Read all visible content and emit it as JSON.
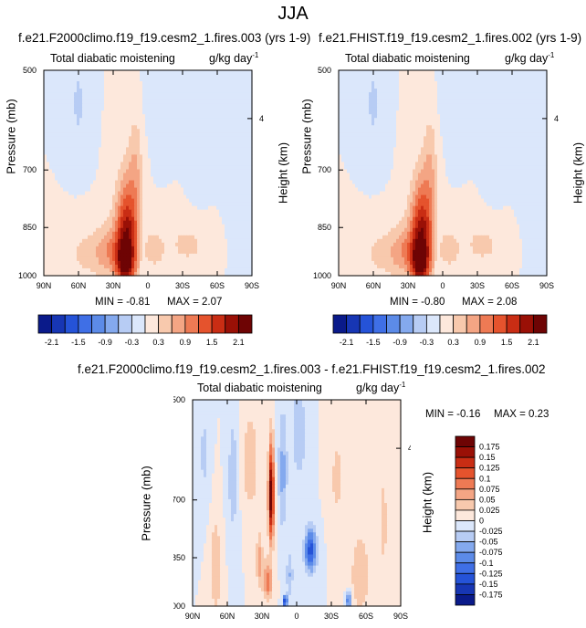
{
  "figure_title": "JJA",
  "panels": [
    {
      "title": "f.e21.F2000climo.f19_f19.cesm2_1.fires.003 (yrs 1-9)",
      "subtitle_left": "Total diabatic moistening",
      "units": "g/kg day",
      "units_exp": "-1",
      "ylabel": "Pressure (mb)",
      "ylabel_right": "Height (km)",
      "min_label": "MIN = -0.81",
      "max_label": "MAX =  2.07",
      "colorbar_labels": [
        "-2.1",
        "-1.5",
        "-0.9",
        "-0.3",
        "0.3",
        "0.9",
        "1.5",
        "2.1"
      ]
    },
    {
      "title": "f.e21.FHIST.f19_f19.cesm2_1.fires.002 (yrs 1-9)",
      "subtitle_left": "Total diabatic moistening",
      "units": "g/kg day",
      "units_exp": "-1",
      "ylabel": "Pressure (mb)",
      "ylabel_right": "Height (km)",
      "min_label": "MIN = -0.80",
      "max_label": "MAX =  2.08",
      "colorbar_labels": [
        "-2.1",
        "-1.5",
        "-0.9",
        "-0.3",
        "0.3",
        "0.9",
        "1.5",
        "2.1"
      ]
    },
    {
      "title": "f.e21.F2000climo.f19_f19.cesm2_1.fires.003 - f.e21.FHIST.f19_f19.cesm2_1.fires.002",
      "subtitle_left": "Total diabatic moistening",
      "units": "g/kg day",
      "units_exp": "-1",
      "ylabel": "Pressure (mb)",
      "ylabel_right": "Height (km)",
      "min_label": "MIN = -0.16",
      "max_label": "MAX =  0.23",
      "colorbar_labels": [
        "0.175",
        "0.15",
        "0.125",
        "0.1",
        "0.075",
        "0.05",
        "0.025",
        "0",
        "-0.025",
        "-0.05",
        "-0.075",
        "-0.1",
        "-0.125",
        "-0.15",
        "-0.175"
      ]
    }
  ],
  "chart_data": [
    {
      "type": "heatmap",
      "title": "f.e21.F2000climo.f19_f19.cesm2_1.fires.003 (yrs 1-9)",
      "xlabel": "",
      "ylabel": "Pressure (mb)",
      "x_ticks": [
        "90N",
        "60N",
        "30N",
        "0",
        "30S",
        "60S",
        "90S"
      ],
      "x_range": [
        90,
        -90
      ],
      "y_ticks": [
        500,
        700,
        850,
        1000
      ],
      "y_range": [
        1000,
        500
      ],
      "y_scale": "log",
      "right_axis_ticks": [
        "4"
      ],
      "min": -0.81,
      "max": 2.07,
      "levels": [
        -2.1,
        -1.8,
        -1.5,
        -1.2,
        -0.9,
        -0.6,
        -0.3,
        0,
        0.3,
        0.6,
        0.9,
        1.2,
        1.5,
        1.8,
        2.1
      ],
      "colors": [
        "#0a1a8a",
        "#1736b4",
        "#2553d8",
        "#3f6fe6",
        "#5c8be8",
        "#84a9ee",
        "#b7ccf4",
        "#dbe7fb",
        "#fde8dc",
        "#f8c9ad",
        "#f4a584",
        "#ee7a54",
        "#e5532d",
        "#c92d14",
        "#9a1006",
        "#6e0404"
      ],
      "features": [
        {
          "lat": 18,
          "p": 880,
          "amp": 2.0,
          "slat": 10,
          "sp": 150
        },
        {
          "lat": 20,
          "p": 960,
          "amp": 1.2,
          "slat": 7,
          "sp": 60
        },
        {
          "lat": 10,
          "p": 690,
          "amp": 0.5,
          "slat": 7,
          "sp": 120
        },
        {
          "lat": 33,
          "p": 920,
          "amp": 0.6,
          "slat": 12,
          "sp": 80
        },
        {
          "lat": 50,
          "p": 930,
          "amp": 0.4,
          "slat": 22,
          "sp": 80
        },
        {
          "lat": -5,
          "p": 920,
          "amp": 0.3,
          "slat": 10,
          "sp": 80
        },
        {
          "lat": -35,
          "p": 900,
          "amp": 0.35,
          "slat": 25,
          "sp": 90
        },
        {
          "lat": 60,
          "p": 560,
          "amp": -0.35,
          "slat": 8,
          "sp": 100
        },
        {
          "lat": -10,
          "p": 560,
          "amp": -0.25,
          "slat": 12,
          "sp": 100
        },
        {
          "lat": -45,
          "p": 640,
          "amp": -0.3,
          "slat": 10,
          "sp": 140
        },
        {
          "lat": 5,
          "p": 860,
          "amp": -0.25,
          "slat": 3,
          "sp": 200
        },
        {
          "lat": -75,
          "p": 700,
          "amp": -0.15,
          "slat": 12,
          "sp": 250
        }
      ]
    },
    {
      "type": "heatmap",
      "title": "f.e21.FHIST.f19_f19.cesm2_1.fires.002 (yrs 1-9)",
      "xlabel": "",
      "ylabel": "Pressure (mb)",
      "x_ticks": [
        "90N",
        "60N",
        "30N",
        "0",
        "30S",
        "60S",
        "90S"
      ],
      "x_range": [
        90,
        -90
      ],
      "y_ticks": [
        500,
        700,
        850,
        1000
      ],
      "y_range": [
        1000,
        500
      ],
      "y_scale": "log",
      "right_axis_ticks": [
        "4"
      ],
      "min": -0.8,
      "max": 2.08,
      "levels": [
        -2.1,
        -1.8,
        -1.5,
        -1.2,
        -0.9,
        -0.6,
        -0.3,
        0,
        0.3,
        0.6,
        0.9,
        1.2,
        1.5,
        1.8,
        2.1
      ],
      "colors": [
        "#0a1a8a",
        "#1736b4",
        "#2553d8",
        "#3f6fe6",
        "#5c8be8",
        "#84a9ee",
        "#b7ccf4",
        "#dbe7fb",
        "#fde8dc",
        "#f8c9ad",
        "#f4a584",
        "#ee7a54",
        "#e5532d",
        "#c92d14",
        "#9a1006",
        "#6e0404"
      ],
      "features": [
        {
          "lat": 18,
          "p": 880,
          "amp": 2.0,
          "slat": 10,
          "sp": 150
        },
        {
          "lat": 20,
          "p": 960,
          "amp": 1.2,
          "slat": 7,
          "sp": 60
        },
        {
          "lat": 10,
          "p": 690,
          "amp": 0.5,
          "slat": 7,
          "sp": 120
        },
        {
          "lat": 33,
          "p": 920,
          "amp": 0.6,
          "slat": 12,
          "sp": 80
        },
        {
          "lat": 50,
          "p": 930,
          "amp": 0.4,
          "slat": 22,
          "sp": 80
        },
        {
          "lat": -5,
          "p": 920,
          "amp": 0.3,
          "slat": 10,
          "sp": 80
        },
        {
          "lat": -35,
          "p": 900,
          "amp": 0.35,
          "slat": 25,
          "sp": 90
        },
        {
          "lat": 60,
          "p": 560,
          "amp": -0.35,
          "slat": 8,
          "sp": 100
        },
        {
          "lat": -10,
          "p": 560,
          "amp": -0.25,
          "slat": 12,
          "sp": 100
        },
        {
          "lat": -45,
          "p": 640,
          "amp": -0.3,
          "slat": 10,
          "sp": 140
        },
        {
          "lat": 5,
          "p": 860,
          "amp": -0.25,
          "slat": 3,
          "sp": 200
        },
        {
          "lat": -75,
          "p": 700,
          "amp": -0.15,
          "slat": 12,
          "sp": 250
        }
      ]
    },
    {
      "type": "heatmap",
      "title": "f.e21.F2000climo.f19_f19.cesm2_1.fires.003 - f.e21.FHIST.f19_f19.cesm2_1.fires.002",
      "xlabel": "",
      "ylabel": "Pressure (mb)",
      "x_ticks": [
        "90N",
        "60N",
        "30N",
        "0",
        "30S",
        "60S",
        "90S"
      ],
      "x_range": [
        90,
        -90
      ],
      "y_ticks": [
        500,
        700,
        850,
        1000
      ],
      "y_range": [
        1000,
        500
      ],
      "y_scale": "log",
      "right_axis_ticks": [
        "4"
      ],
      "min": -0.16,
      "max": 0.23,
      "levels": [
        -0.175,
        -0.15,
        -0.125,
        -0.1,
        -0.075,
        -0.05,
        -0.025,
        0,
        0.025,
        0.05,
        0.075,
        0.1,
        0.125,
        0.15,
        0.175
      ],
      "colors": [
        "#0a1a8a",
        "#1736b4",
        "#2553d8",
        "#3f6fe6",
        "#5c8be8",
        "#84a9ee",
        "#b7ccf4",
        "#dbe7fb",
        "#fde8dc",
        "#f8c9ad",
        "#f4a584",
        "#ee7a54",
        "#e5532d",
        "#c92d14",
        "#9a1006",
        "#6e0404"
      ],
      "features": [
        {
          "lat": 22,
          "p": 690,
          "amp": 0.2,
          "slat": 2.5,
          "sp": 110
        },
        {
          "lat": 25,
          "p": 920,
          "amp": 0.09,
          "slat": 4,
          "sp": 60
        },
        {
          "lat": 32,
          "p": 860,
          "amp": 0.06,
          "slat": 3,
          "sp": 80
        },
        {
          "lat": 70,
          "p": 880,
          "amp": 0.05,
          "slat": 5,
          "sp": 140
        },
        {
          "lat": 40,
          "p": 620,
          "amp": 0.04,
          "slat": 8,
          "sp": 120
        },
        {
          "lat": -55,
          "p": 900,
          "amp": 0.05,
          "slat": 8,
          "sp": 120
        },
        {
          "lat": -35,
          "p": 650,
          "amp": 0.035,
          "slat": 6,
          "sp": 100
        },
        {
          "lat": -75,
          "p": 760,
          "amp": 0.03,
          "slat": 6,
          "sp": 200
        },
        {
          "lat": -12,
          "p": 830,
          "amp": -0.14,
          "slat": 5,
          "sp": 60
        },
        {
          "lat": 12,
          "p": 640,
          "amp": -0.06,
          "slat": 4,
          "sp": 130
        },
        {
          "lat": -2,
          "p": 560,
          "amp": -0.05,
          "slat": 6,
          "sp": 90
        },
        {
          "lat": 55,
          "p": 650,
          "amp": -0.04,
          "slat": 5,
          "sp": 150
        },
        {
          "lat": 6,
          "p": 900,
          "amp": -0.05,
          "slat": 3,
          "sp": 70
        },
        {
          "lat": -45,
          "p": 980,
          "amp": -0.12,
          "slat": 2,
          "sp": 25
        },
        {
          "lat": 10,
          "p": 985,
          "amp": -0.15,
          "slat": 2,
          "sp": 20
        },
        {
          "lat": 80,
          "p": 600,
          "amp": -0.03,
          "slat": 5,
          "sp": 120
        }
      ]
    }
  ]
}
